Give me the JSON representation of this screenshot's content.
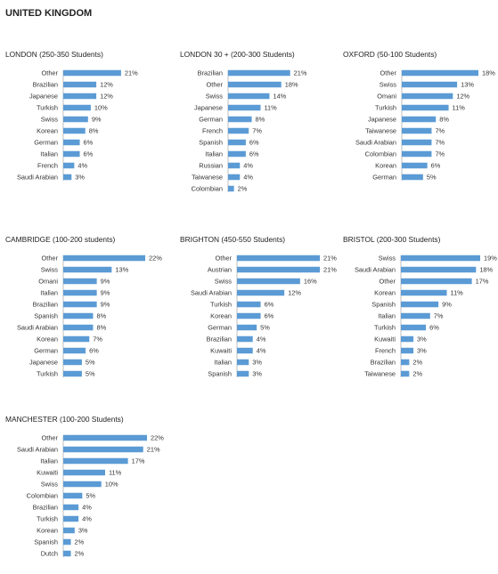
{
  "page_title": "UNITED KINGDOM",
  "colors": {
    "bar": "#5b9bd5",
    "axis": "#bfbfbf"
  },
  "chart_data": [
    {
      "type": "bar",
      "orientation": "horizontal",
      "title": "LONDON (250-350 Students)",
      "categories": [
        "Other",
        "Brazilian",
        "Japanese",
        "Turkish",
        "Swiss",
        "Korean",
        "German",
        "Italian",
        "French",
        "Saudi Arabian"
      ],
      "values": [
        21,
        12,
        12,
        10,
        9,
        8,
        6,
        6,
        4,
        3
      ],
      "value_labels": [
        "21%",
        "12%",
        "12%",
        "10%",
        "9%",
        "8%",
        "6%",
        "6%",
        "4%",
        "3%"
      ],
      "xlim": [
        0,
        22
      ]
    },
    {
      "type": "bar",
      "orientation": "horizontal",
      "title": "LONDON 30 + (200-300 Students)",
      "categories": [
        "Brazilian",
        "Other",
        "Swiss",
        "Japanese",
        "German",
        "French",
        "Spanish",
        "Italian",
        "Russian",
        "Taiwanese",
        "Colombian"
      ],
      "values": [
        21,
        18,
        14,
        11,
        8,
        7,
        6,
        6,
        4,
        4,
        2
      ],
      "value_labels": [
        "21%",
        "18%",
        "14%",
        "11%",
        "8%",
        "7%",
        "6%",
        "6%",
        "4%",
        "4%",
        "2%"
      ],
      "xlim": [
        0,
        22
      ]
    },
    {
      "type": "bar",
      "orientation": "horizontal",
      "title": "OXFORD (50-100 Students)",
      "categories": [
        "Other",
        "Swiss",
        "Omani",
        "Turkish",
        "Japanese",
        "Taiwanese",
        "Saudi Arabian",
        "Colombian",
        "Korean",
        "German"
      ],
      "values": [
        18,
        13,
        12,
        11,
        8,
        7,
        7,
        7,
        6,
        5
      ],
      "value_labels": [
        "18%",
        "13%",
        "12%",
        "11%",
        "8%",
        "7%",
        "7%",
        "7%",
        "6%",
        "5%"
      ],
      "xlim": [
        0,
        18
      ]
    },
    {
      "type": "bar",
      "orientation": "horizontal",
      "title": "CAMBRIDGE (100-200 students)",
      "categories": [
        "Other",
        "Swiss",
        "Omani",
        "Italian",
        "Brazilian",
        "Spanish",
        "Saudi Arabian",
        "Korean",
        "German",
        "Japanese",
        "Turkish"
      ],
      "values": [
        22,
        13,
        9,
        9,
        9,
        8,
        8,
        7,
        6,
        5,
        5
      ],
      "value_labels": [
        "22%",
        "13%",
        "9%",
        "9%",
        "9%",
        "8%",
        "8%",
        "7%",
        "6%",
        "5%",
        "5%"
      ],
      "xlim": [
        0,
        22
      ]
    },
    {
      "type": "bar",
      "orientation": "horizontal",
      "title": "BRIGHTON (450-550 Students)",
      "categories": [
        "Other",
        "Austrian",
        "Swiss",
        "Saudi Arabian",
        "Turkish",
        "Korean",
        "German",
        "Brazilian",
        "Kuwaiti",
        "Italian",
        "Spanish"
      ],
      "values": [
        21,
        21,
        16,
        12,
        6,
        6,
        5,
        4,
        4,
        3,
        3
      ],
      "value_labels": [
        "21%",
        "21%",
        "16%",
        "12%",
        "6%",
        "6%",
        "5%",
        "4%",
        "4%",
        "3%",
        "3%"
      ],
      "xlim": [
        0,
        21
      ]
    },
    {
      "type": "bar",
      "orientation": "horizontal",
      "title": "BRISTOL  (200-300 Students)",
      "categories": [
        "Swiss",
        "Saudi Arabian",
        "Other",
        "Korean",
        "Spanish",
        "Italian",
        "Turkish",
        "Kuwaiti",
        "French",
        "Brazilian",
        "Taiwanese"
      ],
      "values": [
        19,
        18,
        17,
        11,
        9,
        7,
        6,
        3,
        3,
        2,
        2
      ],
      "value_labels": [
        "19%",
        "18%",
        "17%",
        "11%",
        "9%",
        "7%",
        "6%",
        "3%",
        "3%",
        "2%",
        "2%"
      ],
      "xlim": [
        0,
        19
      ]
    },
    {
      "type": "bar",
      "orientation": "horizontal",
      "title": "MANCHESTER (100-200 Students)",
      "categories": [
        "Other",
        "Saudi Arabian",
        "Italian",
        "Kuwaiti",
        "Swiss",
        "Colombian",
        "Brazilian",
        "Turkish",
        "Korean",
        "Spanish",
        "Dutch"
      ],
      "values": [
        22,
        21,
        17,
        11,
        10,
        5,
        4,
        4,
        3,
        2,
        2
      ],
      "value_labels": [
        "22%",
        "21%",
        "17%",
        "11%",
        "10%",
        "5%",
        "4%",
        "4%",
        "3%",
        "2%",
        "2%"
      ],
      "xlim": [
        0,
        22
      ]
    }
  ]
}
